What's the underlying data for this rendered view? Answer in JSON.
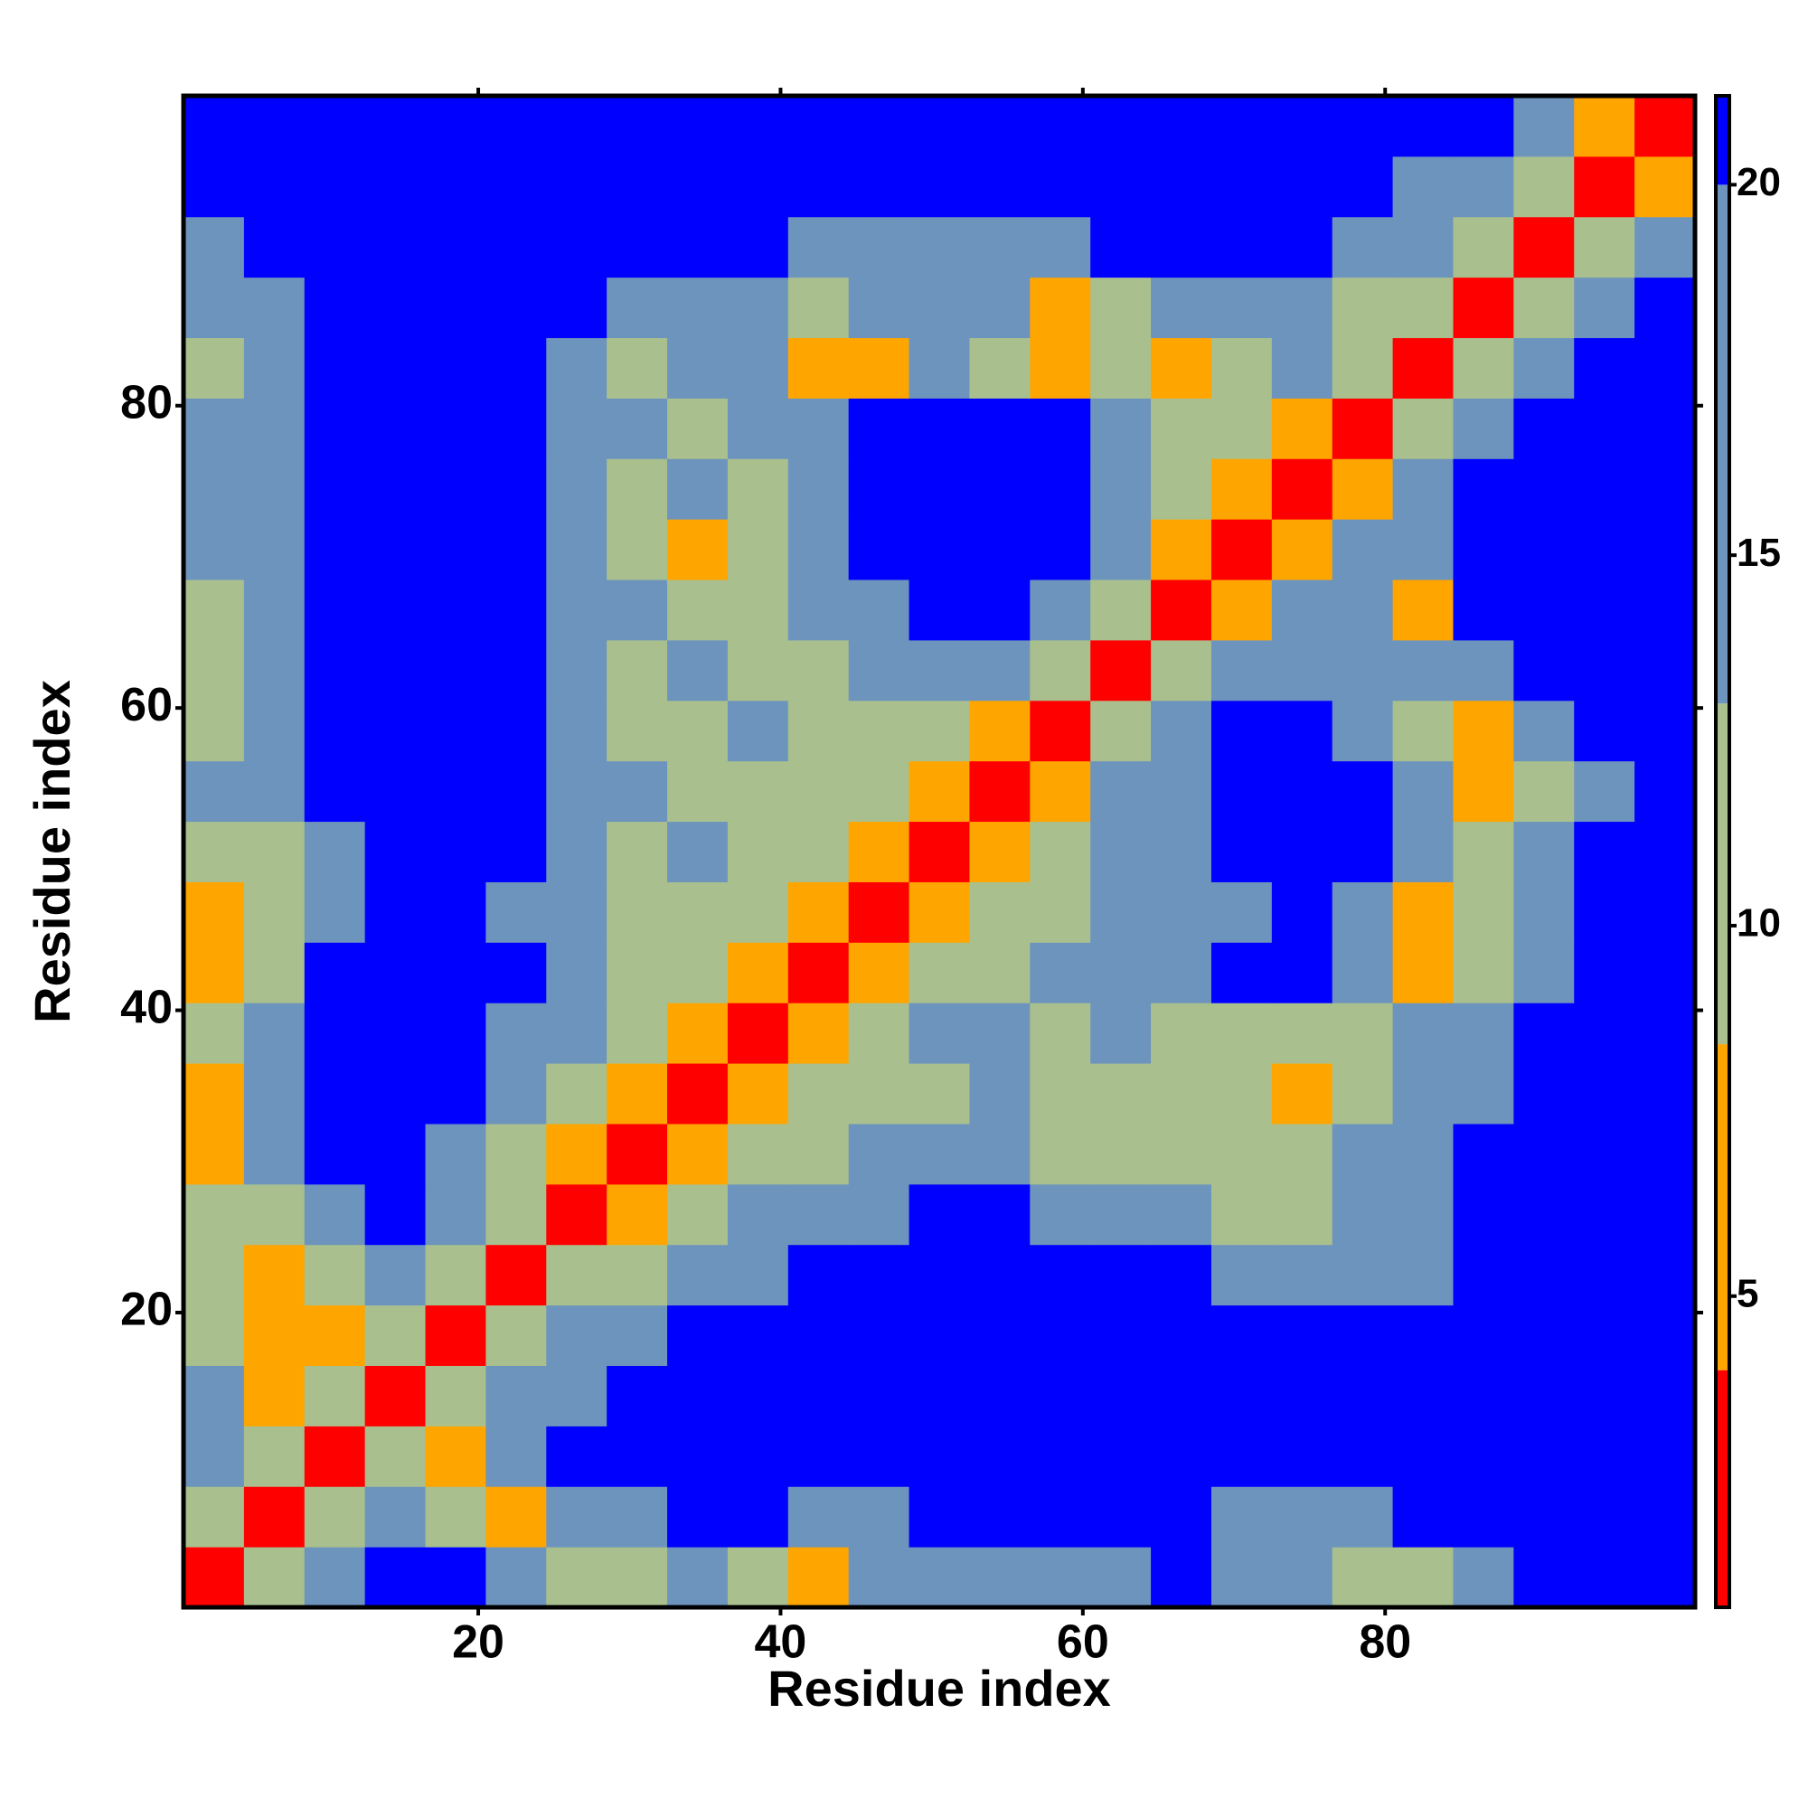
{
  "chart_data": {
    "type": "heatmap",
    "x_label": "Residue index",
    "y_label": "Residue index",
    "xbins": [
      0.5,
      4.5,
      8.5,
      12.5,
      16.5,
      20.5,
      24.5,
      28.5,
      32.5,
      36.5,
      40.5,
      44.5,
      48.5,
      52.5,
      56.5,
      60.5,
      64.5,
      68.5,
      72.5,
      76.5,
      80.5,
      84.5,
      88.5,
      92.5,
      96.5,
      100.5
    ],
    "ybins": [
      0.5,
      4.5,
      8.5,
      12.5,
      16.5,
      20.5,
      24.5,
      28.5,
      32.5,
      36.5,
      40.5,
      44.5,
      48.5,
      52.5,
      56.5,
      60.5,
      64.5,
      68.5,
      72.5,
      76.5,
      80.5,
      84.5,
      88.5,
      92.5,
      96.5,
      100.5
    ],
    "xlim": [
      0.5,
      100.5
    ],
    "ylim": [
      0.5,
      100.5
    ],
    "xticks": [
      20,
      40,
      60,
      80
    ],
    "yticks": [
      20,
      40,
      60,
      80
    ],
    "clim": [
      0.8,
      21.2
    ],
    "cticks": [
      5,
      10,
      15,
      20
    ],
    "colorscale": [
      {
        "max": 4,
        "color": "#ff0000"
      },
      {
        "max": 8.4,
        "color": "#ffa500"
      },
      {
        "max": 13,
        "color": "#a9c08e"
      },
      {
        "max": 20,
        "color": "#6d94bd"
      },
      {
        "max": 21.2,
        "color": "#0000ff"
      }
    ],
    "values": [
      [
        2,
        10,
        16,
        21,
        21,
        15,
        12,
        10,
        14,
        12,
        8,
        14,
        16,
        16,
        17,
        17,
        21,
        16,
        14,
        12,
        12,
        15,
        21,
        21,
        21
      ],
      [
        10,
        2,
        10,
        15,
        12,
        8,
        14,
        16,
        21,
        21,
        16,
        15,
        21,
        21,
        21,
        21,
        21,
        15,
        14,
        16,
        21,
        21,
        21,
        21,
        21
      ],
      [
        15,
        10,
        2,
        9,
        7,
        14,
        21,
        21,
        21,
        21,
        21,
        21,
        21,
        21,
        21,
        21,
        21,
        21,
        21,
        21,
        21,
        21,
        21,
        21,
        21
      ],
      [
        14,
        8,
        9,
        2,
        9,
        16,
        17,
        21,
        21,
        21,
        21,
        21,
        21,
        21,
        21,
        21,
        21,
        21,
        21,
        21,
        21,
        21,
        21,
        21,
        21
      ],
      [
        13,
        6,
        7,
        9,
        2,
        9,
        15,
        16,
        21,
        21,
        21,
        21,
        21,
        21,
        21,
        21,
        21,
        21,
        21,
        21,
        21,
        21,
        21,
        21,
        21
      ],
      [
        12,
        6,
        10,
        15,
        9,
        2,
        9,
        10,
        15,
        16,
        21,
        21,
        21,
        21,
        21,
        21,
        21,
        16,
        15,
        15,
        16,
        21,
        21,
        21,
        21
      ],
      [
        10,
        12,
        14,
        21,
        15,
        9,
        2,
        7,
        10,
        14,
        15,
        16,
        21,
        21,
        16,
        15,
        14,
        12,
        13,
        14,
        15,
        21,
        21,
        21,
        21
      ],
      [
        8,
        14,
        21,
        21,
        16,
        10,
        7,
        2,
        6,
        11,
        12,
        14,
        15,
        14,
        12,
        13,
        12,
        13,
        12,
        14,
        15,
        21,
        21,
        21,
        21
      ],
      [
        7,
        15,
        21,
        21,
        21,
        15,
        10,
        6,
        2,
        7,
        10,
        12,
        13,
        14,
        12,
        11,
        13,
        12,
        8,
        12,
        15,
        16,
        21,
        21,
        21
      ],
      [
        10,
        16,
        21,
        21,
        21,
        16,
        14,
        11,
        7,
        2,
        8,
        12,
        14,
        15,
        13,
        14,
        12,
        13,
        12,
        11,
        14,
        16,
        21,
        21,
        21
      ],
      [
        6,
        12,
        21,
        21,
        21,
        21,
        15,
        12,
        10,
        8,
        2,
        8,
        11,
        13,
        15,
        14,
        16,
        21,
        21,
        15,
        7,
        12,
        16,
        21,
        21
      ],
      [
        6,
        11,
        16,
        21,
        21,
        16,
        14,
        13,
        12,
        12,
        8,
        2,
        6,
        11,
        13,
        14,
        15,
        16,
        21,
        14,
        6,
        11,
        15,
        21,
        21
      ],
      [
        12,
        10,
        15,
        21,
        21,
        21,
        15,
        13,
        14,
        13,
        11,
        6,
        2,
        7,
        12,
        15,
        16,
        21,
        21,
        21,
        14,
        13,
        16,
        21,
        21
      ],
      [
        14,
        15,
        21,
        21,
        21,
        21,
        16,
        14,
        13,
        12,
        13,
        12,
        7,
        2,
        8,
        14,
        15,
        21,
        21,
        21,
        15,
        7,
        12,
        16,
        21
      ],
      [
        12,
        16,
        21,
        21,
        21,
        21,
        15,
        12,
        13,
        14,
        12,
        13,
        12,
        8,
        2,
        9,
        15,
        21,
        21,
        16,
        10,
        7,
        14,
        21,
        21
      ],
      [
        12,
        15,
        21,
        21,
        21,
        21,
        14,
        13,
        15,
        13,
        12,
        14,
        15,
        14,
        9,
        2,
        9,
        14,
        16,
        15,
        14,
        16,
        21,
        21,
        21
      ],
      [
        13,
        15,
        21,
        21,
        21,
        21,
        16,
        14,
        12,
        13,
        14,
        15,
        21,
        21,
        15,
        9,
        2,
        8,
        14,
        15,
        7,
        21,
        21,
        21,
        21
      ],
      [
        14,
        16,
        21,
        21,
        21,
        21,
        15,
        12,
        8,
        13,
        14,
        21,
        21,
        21,
        21,
        14,
        8,
        2,
        6,
        14,
        15,
        21,
        21,
        21,
        21
      ],
      [
        15,
        14,
        21,
        21,
        21,
        21,
        16,
        13,
        14,
        12,
        15,
        21,
        21,
        21,
        21,
        16,
        13,
        6,
        2,
        8,
        16,
        21,
        21,
        21,
        21
      ],
      [
        14,
        15,
        21,
        21,
        21,
        21,
        15,
        14,
        13,
        15,
        16,
        21,
        21,
        21,
        21,
        15,
        12,
        10,
        7,
        2,
        9,
        15,
        21,
        21,
        21
      ],
      [
        12,
        16,
        21,
        21,
        21,
        21,
        14,
        12,
        15,
        14,
        7,
        6,
        14,
        13,
        8,
        13,
        6,
        11,
        14,
        9,
        2,
        10,
        16,
        21,
        21
      ],
      [
        15,
        16,
        21,
        21,
        21,
        21,
        21,
        16,
        15,
        14,
        12,
        14,
        16,
        15,
        7,
        12,
        15,
        16,
        15,
        13,
        10,
        2,
        9,
        15,
        21
      ],
      [
        16,
        21,
        21,
        21,
        21,
        21,
        21,
        21,
        21,
        21,
        15,
        14,
        16,
        15,
        15,
        21,
        21,
        21,
        21,
        16,
        15,
        9,
        2,
        9,
        15
      ],
      [
        21,
        21,
        21,
        21,
        21,
        21,
        21,
        21,
        21,
        21,
        21,
        21,
        21,
        21,
        21,
        21,
        21,
        21,
        21,
        21,
        16,
        14,
        10,
        2,
        8
      ],
      [
        21,
        21,
        21,
        21,
        21,
        21,
        21,
        21,
        21,
        21,
        21,
        21,
        21,
        21,
        21,
        21,
        21,
        21,
        21,
        21,
        21,
        21,
        14,
        8,
        2
      ]
    ]
  }
}
